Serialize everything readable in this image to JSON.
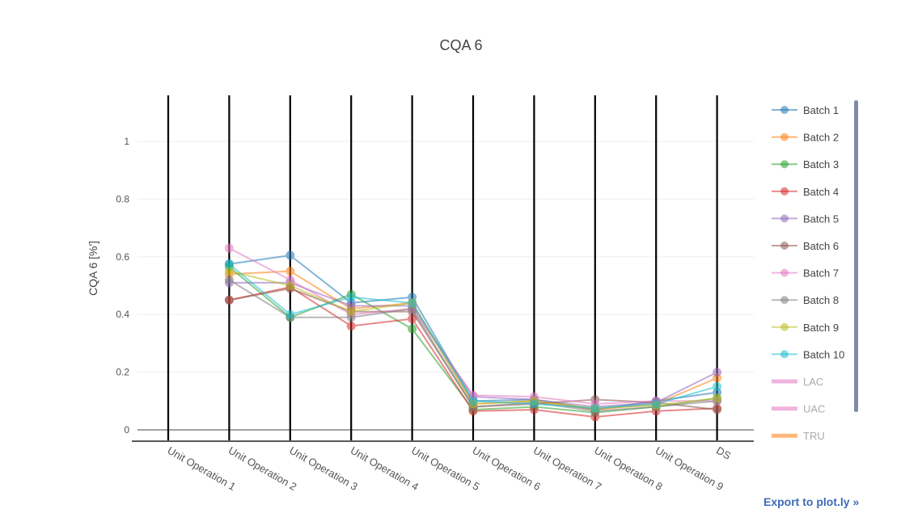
{
  "export_label": "Export to plot.ly »",
  "chart_data": {
    "type": "line",
    "title": "CQA 6",
    "xlabel": "",
    "ylabel": "CQA 6 [%']",
    "ylim": [
      -0.04,
      1.16
    ],
    "yticks": [
      {
        "value": 0,
        "label": "0"
      },
      {
        "value": 0.2,
        "label": "0.2"
      },
      {
        "value": 0.4,
        "label": "0.4"
      },
      {
        "value": 0.6,
        "label": "0.6"
      },
      {
        "value": 0.8,
        "label": "0.8"
      },
      {
        "value": 1,
        "label": "1"
      }
    ],
    "grid": true,
    "legend_position": "right",
    "categories": [
      "Unit Operation 1",
      "Unit Operation 2",
      "Unit Operation 3",
      "Unit Operation 4",
      "Unit Operation 5",
      "Unit Operation 6",
      "Unit Operation 7",
      "Unit Operation 8",
      "Unit Operation 9",
      "DS"
    ],
    "series": [
      {
        "name": "Batch 1",
        "color": "#1f77b4",
        "values": [
          null,
          0.575,
          0.605,
          0.44,
          0.46,
          0.1,
          0.105,
          0.07,
          0.1,
          0.13
        ]
      },
      {
        "name": "Batch 2",
        "color": "#ff7f0e",
        "values": [
          null,
          0.54,
          0.55,
          0.42,
          0.44,
          0.09,
          0.1,
          0.07,
          0.09,
          0.18
        ]
      },
      {
        "name": "Batch 3",
        "color": "#2ca02c",
        "values": [
          null,
          0.565,
          0.39,
          0.47,
          0.35,
          0.07,
          0.08,
          0.06,
          0.08,
          0.11
        ]
      },
      {
        "name": "Batch 4",
        "color": "#d62728",
        "values": [
          null,
          0.45,
          0.495,
          0.36,
          0.385,
          0.065,
          0.07,
          0.045,
          0.065,
          0.075
        ]
      },
      {
        "name": "Batch 5",
        "color": "#9467bd",
        "values": [
          null,
          0.51,
          0.51,
          0.43,
          0.43,
          0.115,
          0.105,
          0.08,
          0.095,
          0.2
        ]
      },
      {
        "name": "Batch 6",
        "color": "#8c564b",
        "values": [
          null,
          0.45,
          0.49,
          0.41,
          0.41,
          0.08,
          0.09,
          0.105,
          0.095,
          0.07
        ]
      },
      {
        "name": "Batch 7",
        "color": "#e377c2",
        "values": [
          null,
          0.63,
          0.52,
          0.4,
          0.42,
          0.12,
          0.115,
          0.09,
          0.1,
          0.1
        ]
      },
      {
        "name": "Batch 8",
        "color": "#7f7f7f",
        "values": [
          null,
          0.52,
          0.39,
          0.39,
          0.42,
          0.08,
          0.095,
          0.065,
          0.08,
          0.1
        ]
      },
      {
        "name": "Batch 9",
        "color": "#bcbd22",
        "values": [
          null,
          0.55,
          0.5,
          0.41,
          0.44,
          0.09,
          0.1,
          0.075,
          0.085,
          0.11
        ]
      },
      {
        "name": "Batch 10",
        "color": "#17becf",
        "values": [
          null,
          0.575,
          0.4,
          0.46,
          0.44,
          0.1,
          0.09,
          0.075,
          0.09,
          0.15
        ]
      }
    ],
    "limit_series": [
      {
        "name": "LAC",
        "color": "#e377c2"
      },
      {
        "name": "UAC",
        "color": "#e377c2"
      },
      {
        "name": "TRU",
        "color": "#ff7f0e"
      }
    ]
  }
}
